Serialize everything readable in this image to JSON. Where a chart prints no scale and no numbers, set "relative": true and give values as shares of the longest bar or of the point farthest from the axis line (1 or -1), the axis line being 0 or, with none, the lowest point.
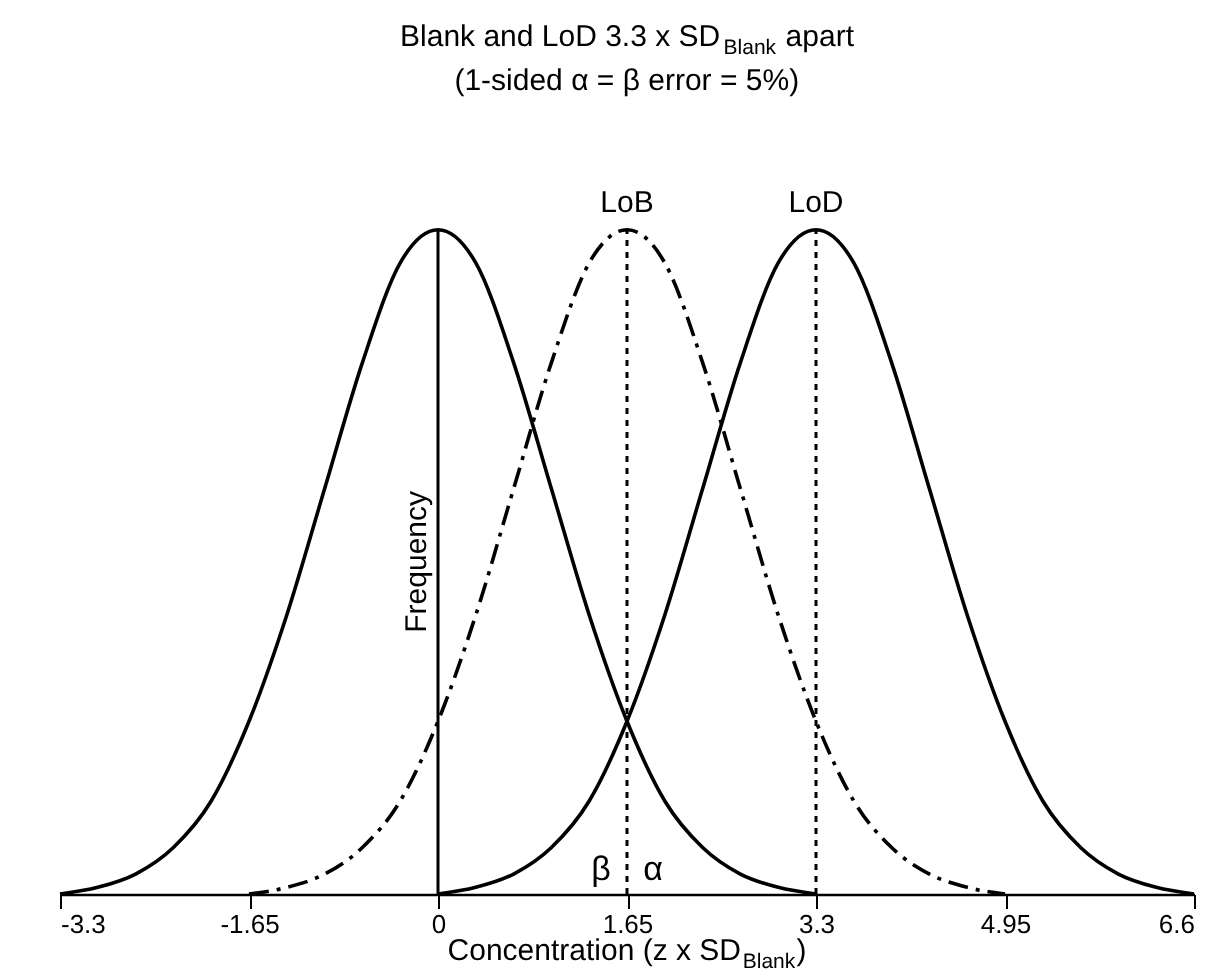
{
  "chart_data": {
    "type": "line",
    "title": "Blank and LoD 3.3 x SD$_{Blank}$ apart",
    "subtitle": "(1-sided α = β error = 5%)",
    "xlabel": "Concentration (z x SD$_{Blank}$)",
    "ylabel": "Frequency",
    "relative": true,
    "xlim": [
      -3.3,
      6.6
    ],
    "xticks": [
      -3.3,
      -1.65,
      0,
      1.65,
      3.3,
      4.95,
      6.6
    ],
    "grid": false,
    "marker": "none",
    "series": [
      {
        "color": "#000000",
        "line_style": "solid",
        "x": [
          -3.3,
          -2.97,
          -2.64,
          -2.31,
          -1.98,
          -1.65,
          -1.32,
          -0.99,
          -0.66,
          -0.33,
          0,
          0.33,
          0.66,
          0.99,
          1.32,
          1.65,
          1.98,
          2.31,
          2.64,
          2.97,
          3.3
        ],
        "values": [
          0.0,
          0.01,
          0.03,
          0.07,
          0.14,
          0.26,
          0.42,
          0.61,
          0.8,
          0.95,
          1,
          0.95,
          0.8,
          0.61,
          0.42,
          0.26,
          0.14,
          0.07,
          0.03,
          0.01,
          0.0
        ]
      },
      {
        "color": "#000000",
        "line_style": "dashed",
        "x": [
          -1.65,
          -1.32,
          -0.99,
          -0.66,
          -0.33,
          0,
          0.33,
          0.66,
          0.99,
          1.32,
          1.65,
          1.98,
          2.31,
          2.64,
          2.97,
          3.3,
          3.63,
          3.96,
          4.29,
          4.62,
          4.95
        ],
        "values": [
          0.0,
          0.01,
          0.03,
          0.07,
          0.14,
          0.26,
          0.42,
          0.61,
          0.8,
          0.95,
          1,
          0.95,
          0.8,
          0.61,
          0.42,
          0.26,
          0.14,
          0.07,
          0.03,
          0.01,
          0.0
        ]
      },
      {
        "color": "#000000",
        "line_style": "solid",
        "x": [
          0,
          0.33,
          0.66,
          0.99,
          1.32,
          1.65,
          1.98,
          2.31,
          2.64,
          2.97,
          3.3,
          3.63,
          3.96,
          4.29,
          4.62,
          4.95,
          5.28,
          5.61,
          5.94,
          6.27,
          6.6
        ],
        "values": [
          0.0,
          0.01,
          0.03,
          0.07,
          0.14,
          0.26,
          0.42,
          0.61,
          0.8,
          0.95,
          1,
          0.95,
          0.8,
          0.61,
          0.42,
          0.26,
          0.14,
          0.07,
          0.03,
          0.01,
          0.0
        ]
      }
    ],
    "ref_lines": [
      {
        "axis": "x",
        "value": 0,
        "label": null,
        "line_style": "solid",
        "color": "#000000"
      },
      {
        "axis": "x",
        "value": 1.65,
        "label": "LoB",
        "line_style": "dotted",
        "color": "#000000"
      },
      {
        "axis": "x",
        "value": 3.3,
        "label": "LoD",
        "line_style": "dotted",
        "color": "#000000"
      }
    ],
    "annotations": [
      "β",
      "α"
    ]
  }
}
